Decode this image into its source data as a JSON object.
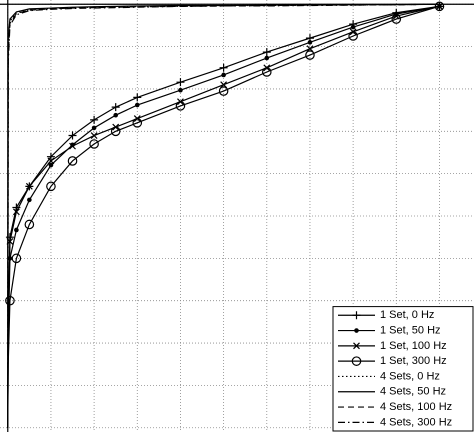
{
  "chart_data": {
    "type": "line",
    "x": [
      0,
      0.001,
      0.005,
      0.02,
      0.05,
      0.1,
      0.15,
      0.2,
      0.25,
      0.3,
      0.4,
      0.5,
      0.6,
      0.7,
      0.8,
      0.9,
      1.0
    ],
    "series": [
      {
        "name": "1 Set, 0 Hz",
        "color": "#000000",
        "marker": "plus",
        "dash": "solid",
        "values": [
          0,
          0.25,
          0.45,
          0.52,
          0.57,
          0.64,
          0.69,
          0.727,
          0.757,
          0.78,
          0.816,
          0.85,
          0.887,
          0.92,
          0.953,
          0.98,
          0.995
        ]
      },
      {
        "name": "1 Set, 50 Hz",
        "color": "#000000",
        "marker": "dot",
        "dash": "solid",
        "values": [
          0,
          0.2,
          0.4,
          0.467,
          0.538,
          0.62,
          0.668,
          0.708,
          0.738,
          0.762,
          0.797,
          0.833,
          0.873,
          0.91,
          0.946,
          0.977,
          0.995
        ]
      },
      {
        "name": "1 Set, 100 Hz",
        "color": "#000000",
        "marker": "cross",
        "dash": "solid",
        "values": [
          0,
          0.24,
          0.44,
          0.51,
          0.57,
          0.63,
          0.665,
          0.69,
          0.71,
          0.73,
          0.77,
          0.81,
          0.85,
          0.895,
          0.935,
          0.972,
          0.995
        ]
      },
      {
        "name": "1 Set, 300 Hz",
        "color": "#000000",
        "marker": "circle",
        "dash": "solid",
        "values": [
          0,
          0.15,
          0.3,
          0.4,
          0.48,
          0.57,
          0.63,
          0.67,
          0.7,
          0.72,
          0.76,
          0.795,
          0.84,
          0.88,
          0.925,
          0.965,
          0.995
        ]
      },
      {
        "name": "4 Sets, 0 Hz",
        "color": "#000000",
        "marker": "none",
        "dash": "dotted",
        "values": [
          0,
          0.9,
          0.96,
          0.98,
          0.988,
          0.99,
          0.992,
          0.993,
          0.994,
          0.995,
          0.996,
          0.997,
          0.997,
          0.998,
          0.998,
          0.999,
          1
        ]
      },
      {
        "name": "4 Sets, 50 Hz",
        "color": "#000000",
        "marker": "none",
        "dash": "solid",
        "values": [
          0,
          0.92,
          0.965,
          0.982,
          0.989,
          0.991,
          0.993,
          0.994,
          0.995,
          0.996,
          0.997,
          0.997,
          0.998,
          0.998,
          0.999,
          0.999,
          1
        ]
      },
      {
        "name": "4 Sets, 100 Hz",
        "color": "#000000",
        "marker": "none",
        "dash": "dashed",
        "values": [
          0,
          0.88,
          0.955,
          0.978,
          0.986,
          0.989,
          0.991,
          0.992,
          0.993,
          0.994,
          0.995,
          0.996,
          0.997,
          0.998,
          0.998,
          0.999,
          1
        ]
      },
      {
        "name": "4 Sets, 300 Hz",
        "color": "#000000",
        "marker": "none",
        "dash": "dashdot",
        "values": [
          0,
          0.86,
          0.95,
          0.975,
          0.985,
          0.988,
          0.99,
          0.991,
          0.992,
          0.993,
          0.995,
          0.996,
          0.996,
          0.997,
          0.998,
          0.999,
          1
        ]
      }
    ],
    "xlim": [
      -0.018,
      1.08
    ],
    "ylim": [
      -0.01,
      1.01
    ],
    "xticks": [
      0,
      0.1,
      0.2,
      0.3,
      0.4,
      0.5,
      0.6,
      0.7,
      0.8,
      0.9,
      1.0
    ],
    "yticks": [
      0,
      0.1,
      0.2,
      0.3,
      0.4,
      0.5,
      0.6,
      0.7,
      0.8,
      0.9,
      1.0
    ],
    "grid": true,
    "legend": "lower right"
  }
}
